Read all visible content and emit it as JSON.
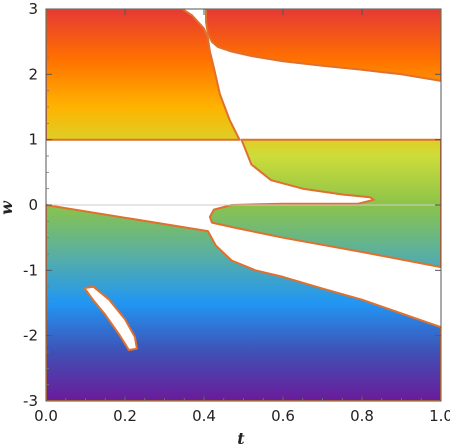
{
  "chart_data": {
    "type": "area",
    "title": "",
    "xlabel": "t",
    "ylabel": "w",
    "xlim": [
      0,
      1
    ],
    "ylim": [
      -3,
      3
    ],
    "xticks": [
      {
        "value": 0.0,
        "label": "0.0"
      },
      {
        "value": 0.2,
        "label": "0.2"
      },
      {
        "value": 0.4,
        "label": "0.4"
      },
      {
        "value": 0.6,
        "label": "0.6"
      },
      {
        "value": 0.8,
        "label": "0.8"
      },
      {
        "value": 1.0,
        "label": "1.0"
      }
    ],
    "yticks": [
      {
        "value": 3,
        "label": "3"
      },
      {
        "value": 2,
        "label": "2"
      },
      {
        "value": 1,
        "label": "1"
      },
      {
        "value": 0,
        "label": "0"
      },
      {
        "value": -1,
        "label": "-1"
      },
      {
        "value": -2,
        "label": "-2"
      },
      {
        "value": -3,
        "label": "-3"
      }
    ],
    "grid": false,
    "legend": "none",
    "colormap": [
      "#6a1b9a",
      "#3f51b5",
      "#2196f3",
      "#5ab0a0",
      "#8bc34a",
      "#cddc39",
      "#ffb300",
      "#ff6f00",
      "#e53935"
    ],
    "boundary_color": "#e0702e",
    "regions": [
      {
        "name": "upper-band",
        "polygon": [
          [
            0.0,
            3.0
          ],
          [
            0.345,
            3.0
          ],
          [
            0.37,
            2.9
          ],
          [
            0.4,
            2.7
          ],
          [
            0.41,
            2.55
          ],
          [
            0.415,
            2.35
          ],
          [
            0.425,
            2.1
          ],
          [
            0.44,
            1.7
          ],
          [
            0.465,
            1.3
          ],
          [
            0.49,
            1.0
          ],
          [
            0.0,
            1.0
          ]
        ]
      },
      {
        "name": "upper-right-wedge",
        "polygon": [
          [
            0.405,
            3.0
          ],
          [
            1.0,
            3.0
          ],
          [
            1.0,
            1.9
          ],
          [
            0.9,
            2.0
          ],
          [
            0.8,
            2.07
          ],
          [
            0.7,
            2.13
          ],
          [
            0.6,
            2.2
          ],
          [
            0.52,
            2.28
          ],
          [
            0.47,
            2.35
          ],
          [
            0.435,
            2.42
          ],
          [
            0.42,
            2.5
          ],
          [
            0.41,
            2.62
          ],
          [
            0.405,
            2.8
          ]
        ]
      },
      {
        "name": "middle-right-band",
        "polygon": [
          [
            0.495,
            1.0
          ],
          [
            1.0,
            1.0
          ],
          [
            1.0,
            -0.95
          ],
          [
            0.8,
            -0.72
          ],
          [
            0.6,
            -0.5
          ],
          [
            0.48,
            -0.35
          ],
          [
            0.42,
            -0.27
          ],
          [
            0.415,
            -0.18
          ],
          [
            0.425,
            -0.07
          ],
          [
            0.47,
            0.0
          ],
          [
            0.6,
            0.02
          ],
          [
            0.79,
            0.02
          ],
          [
            0.83,
            0.08
          ],
          [
            0.82,
            0.12
          ],
          [
            0.75,
            0.16
          ],
          [
            0.65,
            0.25
          ],
          [
            0.57,
            0.38
          ],
          [
            0.52,
            0.62
          ]
        ]
      },
      {
        "name": "lower-band",
        "polygon": [
          [
            0.0,
            0.0
          ],
          [
            0.41,
            -0.4
          ],
          [
            0.43,
            -0.62
          ],
          [
            0.47,
            -0.85
          ],
          [
            0.53,
            -1.0
          ],
          [
            0.6,
            -1.1
          ],
          [
            0.7,
            -1.28
          ],
          [
            0.8,
            -1.45
          ],
          [
            0.9,
            -1.66
          ],
          [
            1.0,
            -1.87
          ],
          [
            1.0,
            -3.0
          ],
          [
            0.0,
            -3.0
          ]
        ]
      },
      {
        "name": "crescent-hole",
        "hole": true,
        "polygon": [
          [
            0.097,
            -1.27
          ],
          [
            0.12,
            -1.25
          ],
          [
            0.16,
            -1.45
          ],
          [
            0.2,
            -1.75
          ],
          [
            0.225,
            -2.02
          ],
          [
            0.23,
            -2.2
          ],
          [
            0.21,
            -2.22
          ],
          [
            0.185,
            -1.98
          ],
          [
            0.15,
            -1.68
          ],
          [
            0.12,
            -1.46
          ]
        ]
      }
    ]
  }
}
